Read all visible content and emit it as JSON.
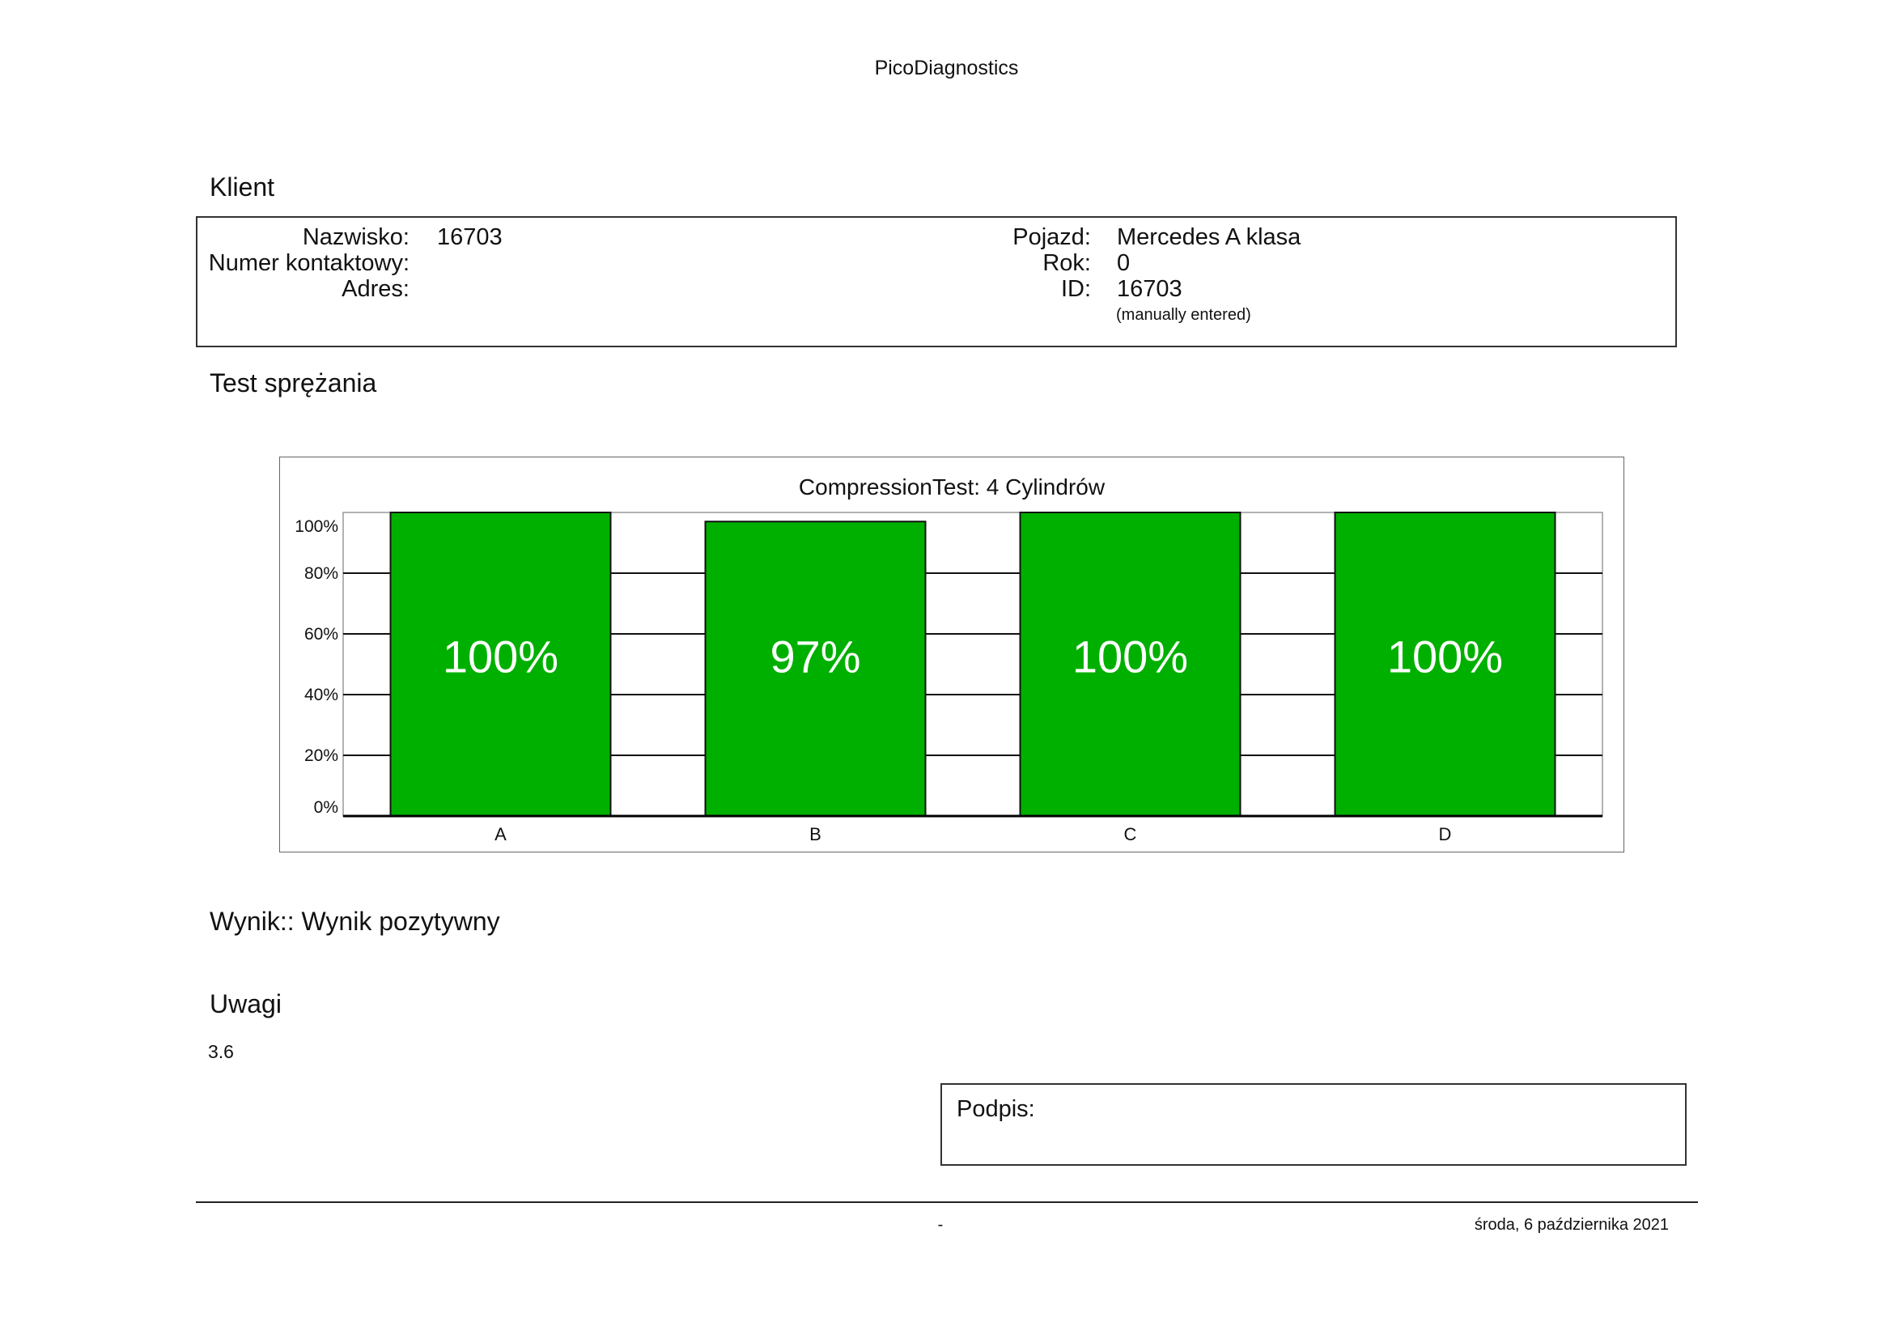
{
  "header": {
    "title": "PicoDiagnostics"
  },
  "client_section": {
    "heading": "Klient",
    "left_fields": [
      {
        "label": "Nazwisko:",
        "value": "16703"
      },
      {
        "label": "Numer kontaktowy:",
        "value": ""
      },
      {
        "label": "Adres:",
        "value": ""
      }
    ],
    "right_fields": [
      {
        "label": "Pojazd:",
        "value": "Mercedes A klasa"
      },
      {
        "label": "Rok:",
        "value": "0"
      },
      {
        "label": "ID:",
        "value": "16703"
      }
    ],
    "id_note": "(manually entered)"
  },
  "test_section": {
    "heading": "Test sprężania"
  },
  "chart_data": {
    "type": "bar",
    "title": "CompressionTest: 4 Cylindrów",
    "categories": [
      "A",
      "B",
      "C",
      "D"
    ],
    "values": [
      100,
      97,
      100,
      100
    ],
    "data_labels": [
      "100%",
      "97%",
      "100%",
      "100%"
    ],
    "ylim": [
      0,
      100
    ],
    "yticks": [
      "0%",
      "20%",
      "40%",
      "60%",
      "80%",
      "100%"
    ],
    "grid": true,
    "bar_color": "#00b000",
    "xlabel": "",
    "ylabel": ""
  },
  "result": {
    "text": "Wynik:: Wynik pozytywny"
  },
  "remarks": {
    "heading": "Uwagi",
    "value": "3.6"
  },
  "signature": {
    "label": "Podpis:"
  },
  "footer": {
    "page": "-",
    "date": "środa, 6 października 2021"
  }
}
